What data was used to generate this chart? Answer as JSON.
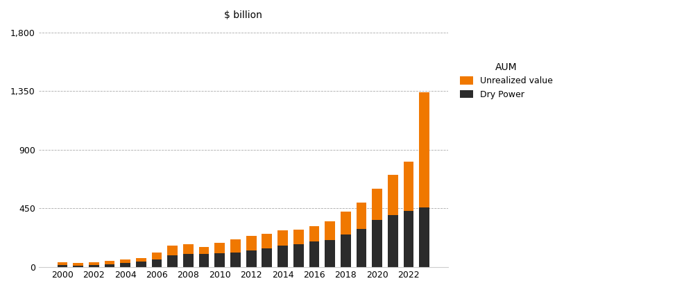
{
  "years": [
    2000,
    2001,
    2002,
    2003,
    2004,
    2005,
    2006,
    2007,
    2008,
    2009,
    2010,
    2011,
    2012,
    2013,
    2014,
    2015,
    2016,
    2017,
    2018,
    2019,
    2020,
    2021,
    2022,
    2023
  ],
  "dry_power": [
    15,
    12,
    18,
    22,
    30,
    42,
    60,
    90,
    100,
    100,
    105,
    115,
    130,
    145,
    165,
    175,
    195,
    210,
    250,
    295,
    360,
    400,
    430,
    460
  ],
  "unrealized_value": [
    25,
    18,
    20,
    24,
    28,
    30,
    55,
    75,
    75,
    55,
    80,
    100,
    110,
    110,
    115,
    115,
    120,
    140,
    175,
    200,
    240,
    310,
    380,
    880
  ],
  "unrealized_color": "#F07800",
  "dry_power_color": "#2b2b2b",
  "title": "$ billion",
  "yticks": [
    0,
    450,
    900,
    1350,
    1800
  ],
  "ylim": [
    0,
    1850
  ],
  "background_color": "#ffffff",
  "legend_title": "AUM",
  "legend_labels": [
    "Unrealized value",
    "Dry Power"
  ],
  "bar_width": 0.65
}
